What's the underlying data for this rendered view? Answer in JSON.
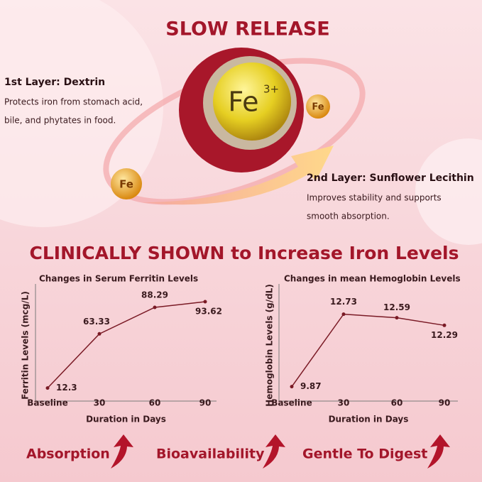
{
  "header": {
    "title": "SLOW RELEASE"
  },
  "layers": [
    {
      "title": "1st Layer: Dextrin",
      "lines": [
        "Protects iron from stomach acid,",
        "bile, and phytates in food."
      ]
    },
    {
      "title": "2nd Layer: Sunflower Lecithin",
      "lines": [
        "Improves stability and supports",
        "smooth absorption."
      ]
    }
  ],
  "illustration": {
    "core": "Fe",
    "charge": "3+",
    "ion_1": "Fe",
    "ion_2": "Fe"
  },
  "headline": "CLINICALLY SHOWN to Increase Iron Levels",
  "chart_data": [
    {
      "type": "line",
      "title": "Changes in Serum Ferritin Levels",
      "y_label": "Ferritin Levels (mcg/L)",
      "x_label": "Duration in Days",
      "categories": [
        "Baseline",
        "30",
        "60",
        "90"
      ],
      "values": [
        12.3,
        63.33,
        88.29,
        93.62
      ],
      "color": "#7a1a25",
      "ylim": [
        0,
        105
      ]
    },
    {
      "type": "line",
      "title": "Changes in mean Hemoglobin Levels",
      "y_label": "Hemoglobin Levels (g/dL)",
      "x_label": "Duration in Days",
      "categories": [
        "Baseline",
        "30",
        "60",
        "90"
      ],
      "values": [
        9.87,
        12.73,
        12.59,
        12.29
      ],
      "color": "#7a1a25",
      "ylim": [
        9.3,
        13.7
      ]
    }
  ],
  "benefits": [
    "Absorption",
    "Bioavailability",
    "Gentle To Digest"
  ]
}
